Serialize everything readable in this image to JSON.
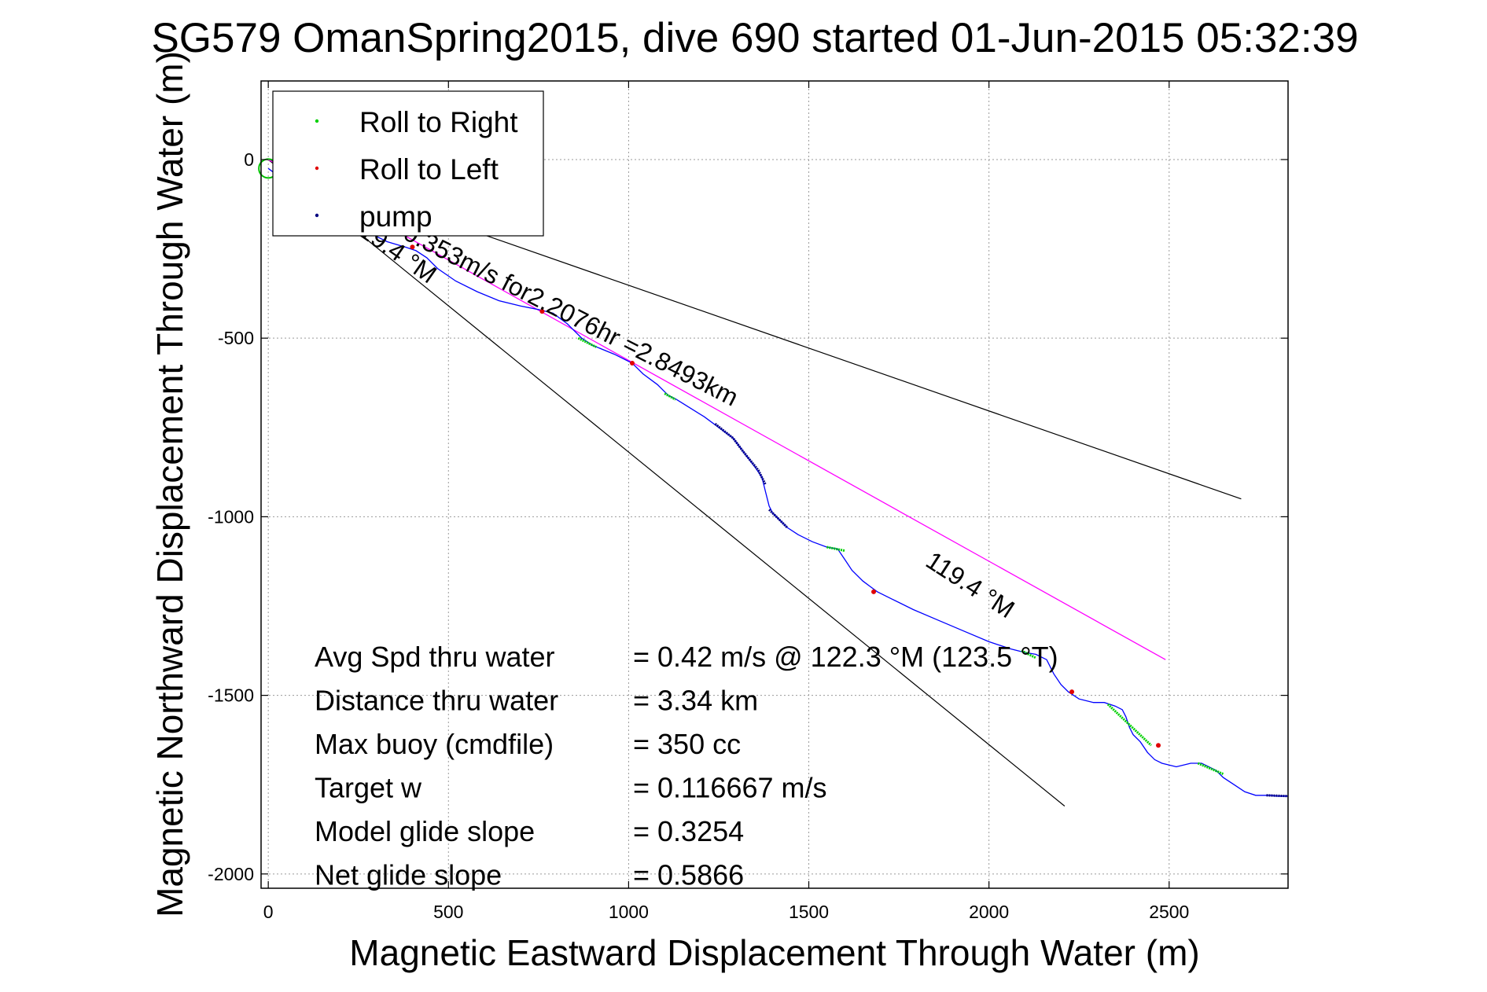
{
  "chart_data": {
    "type": "line",
    "title": "SG579 OmanSpring2015, dive 690 started 01-Jun-2015 05:32:39",
    "xlabel": "Magnetic Eastward Displacement Through Water (m)",
    "ylabel": "Magnetic Northward Displacement Through Water (m)",
    "xlim": [
      -20,
      2830
    ],
    "ylim": [
      -2040,
      220
    ],
    "xticks": [
      0,
      500,
      1000,
      1500,
      2000,
      2500
    ],
    "yticks": [
      0,
      -500,
      -1000,
      -1500,
      -2000
    ],
    "grid": true,
    "legend_position": "top-left",
    "legend": [
      {
        "label": "Roll to Right",
        "color": "#00d000"
      },
      {
        "label": "Roll to Left",
        "color": "#e00000"
      },
      {
        "label": "pump",
        "color": "#000080"
      }
    ],
    "colors": {
      "track": "#0000ff",
      "current": "#ff00ff",
      "bounds": "#000000",
      "start_marker": "#00c000"
    },
    "track": {
      "x": [
        0,
        60,
        130,
        200,
        270,
        330,
        380,
        410,
        440,
        470,
        520,
        580,
        640,
        700,
        750,
        790,
        830,
        870,
        900,
        960,
        1010,
        1040,
        1080,
        1110,
        1130,
        1170,
        1210,
        1250,
        1290,
        1320,
        1350,
        1370,
        1380,
        1390,
        1400,
        1420,
        1440,
        1470,
        1510,
        1550,
        1580,
        1600,
        1620,
        1650,
        1670,
        1690,
        1730,
        1790,
        1860,
        1930,
        2000,
        2060,
        2100,
        2130,
        2160,
        2180,
        2200,
        2220,
        2250,
        2290,
        2320,
        2350,
        2370,
        2380,
        2390,
        2400,
        2420,
        2440,
        2460,
        2480,
        2520,
        2560,
        2590,
        2610,
        2630,
        2650,
        2680,
        2710,
        2740,
        2760,
        2780,
        2800,
        2830
      ],
      "y": [
        -25,
        -70,
        -115,
        -160,
        -200,
        -230,
        -245,
        -255,
        -275,
        -305,
        -340,
        -370,
        -395,
        -410,
        -420,
        -430,
        -460,
        -500,
        -520,
        -545,
        -570,
        -600,
        -630,
        -660,
        -670,
        -695,
        -720,
        -750,
        -780,
        -820,
        -860,
        -890,
        -930,
        -970,
        -990,
        -1010,
        -1030,
        -1050,
        -1070,
        -1085,
        -1090,
        -1120,
        -1150,
        -1180,
        -1195,
        -1210,
        -1230,
        -1260,
        -1290,
        -1320,
        -1350,
        -1370,
        -1380,
        -1385,
        -1400,
        -1440,
        -1470,
        -1490,
        -1510,
        -1520,
        -1520,
        -1530,
        -1540,
        -1560,
        -1590,
        -1610,
        -1630,
        -1660,
        -1680,
        -1690,
        -1700,
        -1690,
        -1690,
        -1700,
        -1710,
        -1730,
        -1750,
        -1770,
        -1780,
        -1780,
        -1780,
        -1782,
        -1782
      ]
    },
    "roll_right_segments": [
      {
        "x": [
          860,
          910
        ],
        "y": [
          -500,
          -525
        ]
      },
      {
        "x": [
          1100,
          1130
        ],
        "y": [
          -655,
          -672
        ]
      },
      {
        "x": [
          1550,
          1600
        ],
        "y": [
          -1085,
          -1095
        ]
      },
      {
        "x": [
          2090,
          2130
        ],
        "y": [
          -1375,
          -1395
        ]
      },
      {
        "x": [
          2330,
          2450
        ],
        "y": [
          -1525,
          -1640
        ]
      },
      {
        "x": [
          2580,
          2650
        ],
        "y": [
          -1690,
          -1720
        ]
      }
    ],
    "roll_left_points": {
      "x": [
        400,
        760,
        1010,
        1680,
        2230,
        2470
      ],
      "y": [
        -245,
        -425,
        -570,
        -1210,
        -1490,
        -1640
      ]
    },
    "pump_segments": [
      {
        "x": [
          1240,
          1290,
          1320,
          1360,
          1380
        ],
        "y": [
          -740,
          -780,
          -820,
          -870,
          -910
        ]
      },
      {
        "x": [
          1390,
          1420,
          1440
        ],
        "y": [
          -980,
          -1010,
          -1030
        ]
      },
      {
        "x": [
          2770,
          2830
        ],
        "y": [
          -1780,
          -1782
        ]
      }
    ],
    "current_line": {
      "x": [
        0,
        2490
      ],
      "y": [
        0,
        -1400
      ]
    },
    "bound_lines": [
      {
        "x": [
          0,
          2700
        ],
        "y": [
          0,
          -950
        ]
      },
      {
        "x": [
          0,
          2210
        ],
        "y": [
          0,
          -1810
        ]
      }
    ],
    "annotations": [
      {
        "text": "0.353m/s for2.2076hr =2.8493km",
        "x": 370,
        "y": -220,
        "angle_deg": 27
      },
      {
        "text": "119.4 °M",
        "x": 220,
        "y": -190,
        "angle_deg": 35
      },
      {
        "text": "119.4 °M",
        "x": 1820,
        "y": -1135,
        "angle_deg": 33
      }
    ],
    "stats": [
      {
        "label": "Avg Spd thru water",
        "value": "=  0.42 m/s @ 122.3 °M (123.5 °T)"
      },
      {
        "label": "Distance thru water",
        "value": "=  3.34 km"
      },
      {
        "label": "Max buoy (cmdfile)",
        "value": "= 350 cc"
      },
      {
        "label": "Target w",
        "value": "= 0.116667 m/s"
      },
      {
        "label": "Model glide slope",
        "value": "= 0.3254"
      },
      {
        "label": "Net glide slope",
        "value": "= 0.5866"
      }
    ]
  }
}
